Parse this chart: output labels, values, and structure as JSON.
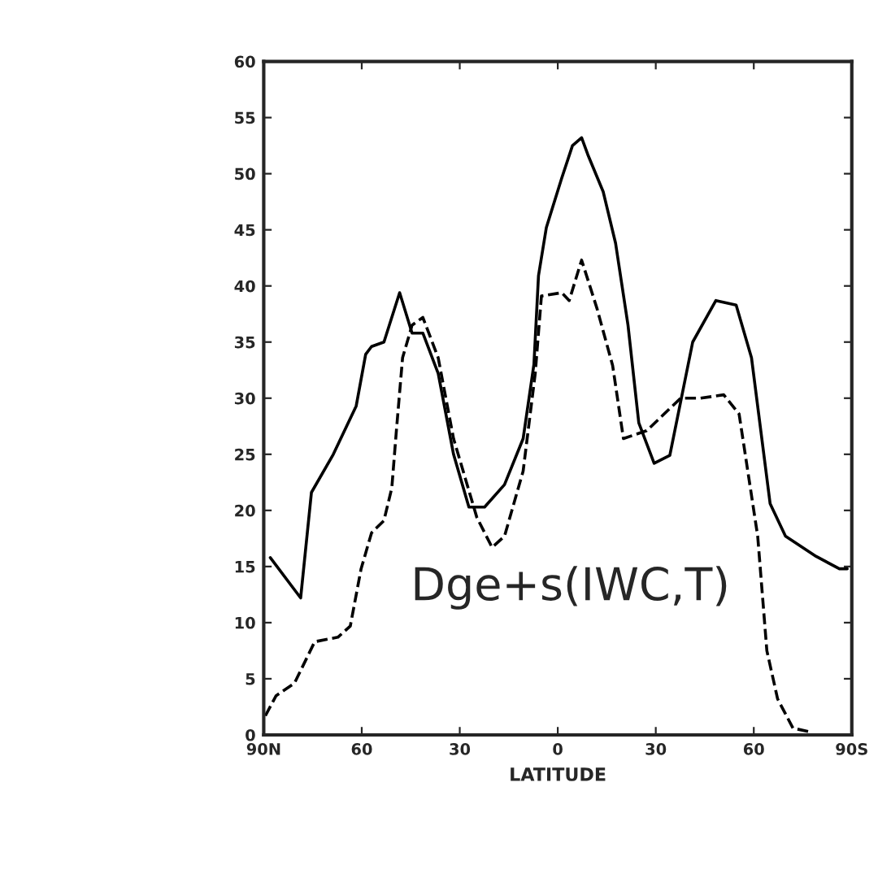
{
  "chart_data": {
    "type": "line",
    "xlabel": "LATITUDE",
    "annotations": [
      "Dge+s(IWC,T)"
    ],
    "xlim": [
      90,
      -90
    ],
    "xticks": [
      {
        "value": 90,
        "label": "90N"
      },
      60,
      30,
      0,
      {
        "value": -30,
        "label": "30"
      },
      {
        "value": -60,
        "label": "60"
      },
      {
        "value": -90,
        "label": "90S"
      }
    ],
    "ylim": [
      0,
      60
    ],
    "yticks": [
      0,
      5,
      10,
      15,
      20,
      25,
      30,
      35,
      40,
      45,
      50,
      55,
      60
    ],
    "grid": false,
    "legend": false,
    "series": [
      {
        "color": "#000000",
        "line_style": "solid",
        "x": [
          88,
          78.7,
          75.4,
          68.7,
          61.7,
          58.8,
          57,
          53.2,
          48.4,
          44.6,
          41.3,
          36.6,
          31.9,
          27.2,
          22.4,
          16.3,
          10.6,
          7.3,
          5.9,
          3.5,
          -1.2,
          -4.5,
          -7.3,
          -9.2,
          -13.9,
          -17.7,
          -21.5,
          -24.8,
          -29.5,
          -34.3,
          -41.3,
          -48.4,
          -54.6,
          -59.3,
          -65,
          -69.7,
          -79.1,
          -86.2,
          -88.6
        ],
        "values": [
          15.8,
          12.2,
          21.6,
          25,
          29.3,
          33.9,
          34.6,
          35,
          39.4,
          35.8,
          35.8,
          32.2,
          25,
          20.3,
          20.3,
          22.3,
          26.4,
          33,
          40.9,
          45.2,
          49.6,
          52.5,
          53.2,
          51.7,
          48.4,
          43.8,
          36.5,
          27.8,
          24.2,
          24.9,
          35,
          38.7,
          38.3,
          33.6,
          20.6,
          17.7,
          15.9,
          14.8,
          14.8
        ]
      },
      {
        "color": "#000000",
        "line_style": "dashed",
        "x": [
          89.5,
          86.2,
          80.6,
          74.4,
          67.3,
          63.5,
          60.2,
          57,
          53.2,
          50.8,
          49.4,
          47.5,
          44.6,
          41.3,
          36.6,
          31.9,
          24.8,
          20.1,
          16.3,
          10.6,
          6.9,
          5,
          -1.2,
          -3.5,
          -7.3,
          -12,
          -16.8,
          -20.1,
          -27.2,
          -37.6,
          -43.7,
          -50.8,
          -55.5,
          -61.2,
          -64,
          -67.3,
          -72,
          -76.8
        ],
        "values": [
          1.7,
          3.5,
          4.6,
          8.3,
          8.7,
          9.7,
          14.8,
          18,
          19.1,
          22,
          27.1,
          33.6,
          36.5,
          37.2,
          33.6,
          26.4,
          19.4,
          16.7,
          17.7,
          23.5,
          32.2,
          39.1,
          39.4,
          38.7,
          42.3,
          38,
          32.9,
          26.4,
          27.1,
          30,
          30,
          30.3,
          28.6,
          17.7,
          7.5,
          3.2,
          0.6,
          0.3
        ]
      }
    ]
  }
}
